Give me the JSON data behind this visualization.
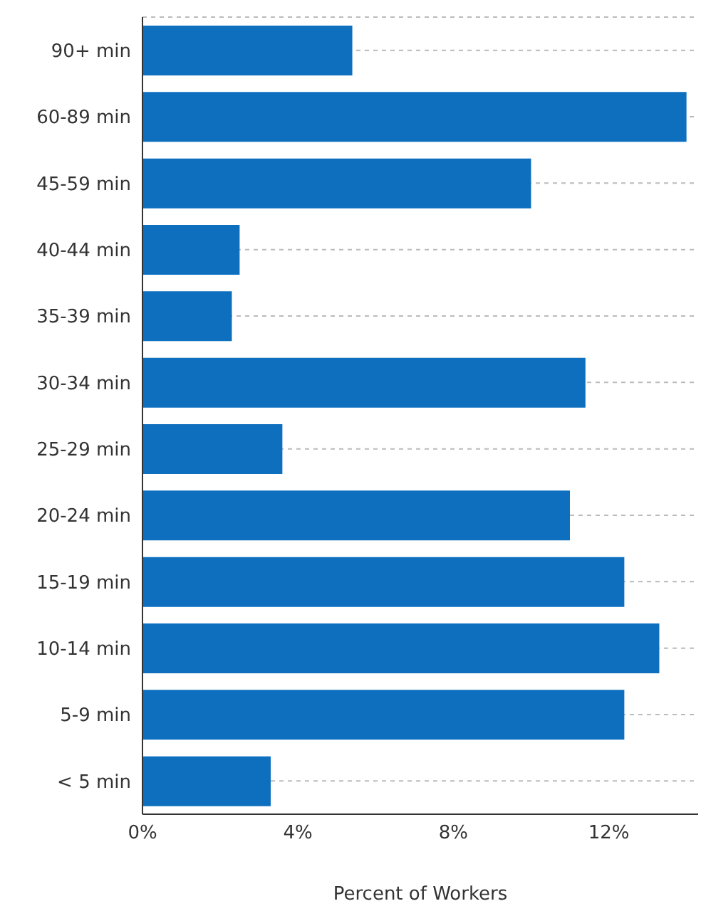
{
  "chart_data": {
    "type": "bar",
    "orientation": "horizontal",
    "xlabel": "Percent of Workers",
    "categories": [
      "90+ min",
      "60-89 min",
      "45-59 min",
      "40-44 min",
      "35-39 min",
      "30-34 min",
      "25-29 min",
      "20-24 min",
      "15-19 min",
      "10-14 min",
      "5-9 min",
      "< 5 min"
    ],
    "values": [
      5.4,
      14.0,
      10.0,
      2.5,
      2.3,
      11.4,
      3.6,
      11.0,
      12.4,
      13.3,
      12.4,
      3.3
    ],
    "color": "#0e6fbf",
    "xlim": [
      0,
      14.3
    ],
    "xticks": [
      {
        "value": 0,
        "label": "0%"
      },
      {
        "value": 4,
        "label": "4%"
      },
      {
        "value": 8,
        "label": "8%"
      },
      {
        "value": 12,
        "label": "12%"
      }
    ],
    "grid": "y"
  }
}
